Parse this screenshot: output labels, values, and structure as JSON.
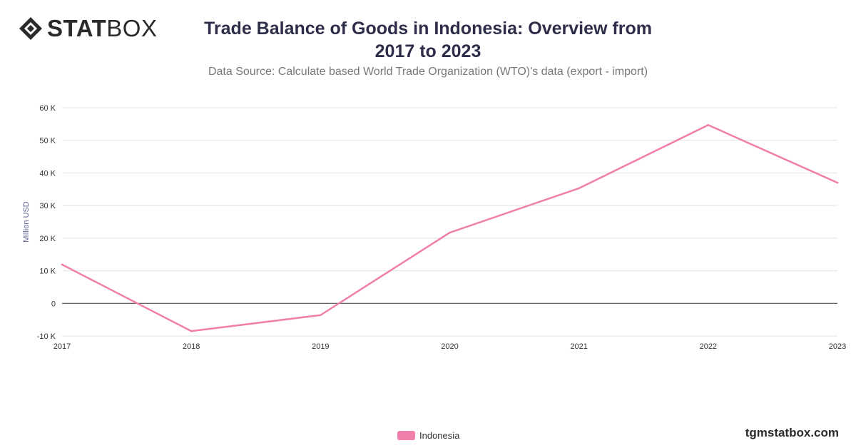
{
  "logo": {
    "text_bold": "STAT",
    "text_light": "BOX"
  },
  "header": {
    "title": "Trade Balance of Goods in Indonesia: Overview from 2017 to 2023",
    "subtitle": "Data Source: Calculate based World Trade Organization (WTO)'s data (export - import)"
  },
  "footer": {
    "site": "tgmstatbox.com"
  },
  "colors": {
    "series": "#f07fab",
    "grid": "#e2e2e2",
    "zero_line": "#333333",
    "axis_text": "#333333",
    "ylabel": "#666699"
  },
  "chart_data": {
    "type": "line",
    "title": "Trade Balance of Goods in Indonesia: Overview from 2017 to 2023",
    "xlabel": "",
    "ylabel": "Million USD",
    "categories": [
      "2017",
      "2018",
      "2019",
      "2020",
      "2021",
      "2022",
      "2023"
    ],
    "series": [
      {
        "name": "Indonesia",
        "values": [
          11900,
          -8500,
          -3600,
          21700,
          35300,
          54700,
          37000
        ]
      }
    ],
    "ylim": [
      -10000,
      60000
    ],
    "yticks": [
      -10000,
      0,
      10000,
      20000,
      30000,
      40000,
      50000,
      60000
    ],
    "ytick_labels": [
      "-10 K",
      "0",
      "10 K",
      "20 K",
      "30 K",
      "40 K",
      "50 K",
      "60 K"
    ],
    "grid": true,
    "legend_position": "bottom-center"
  }
}
